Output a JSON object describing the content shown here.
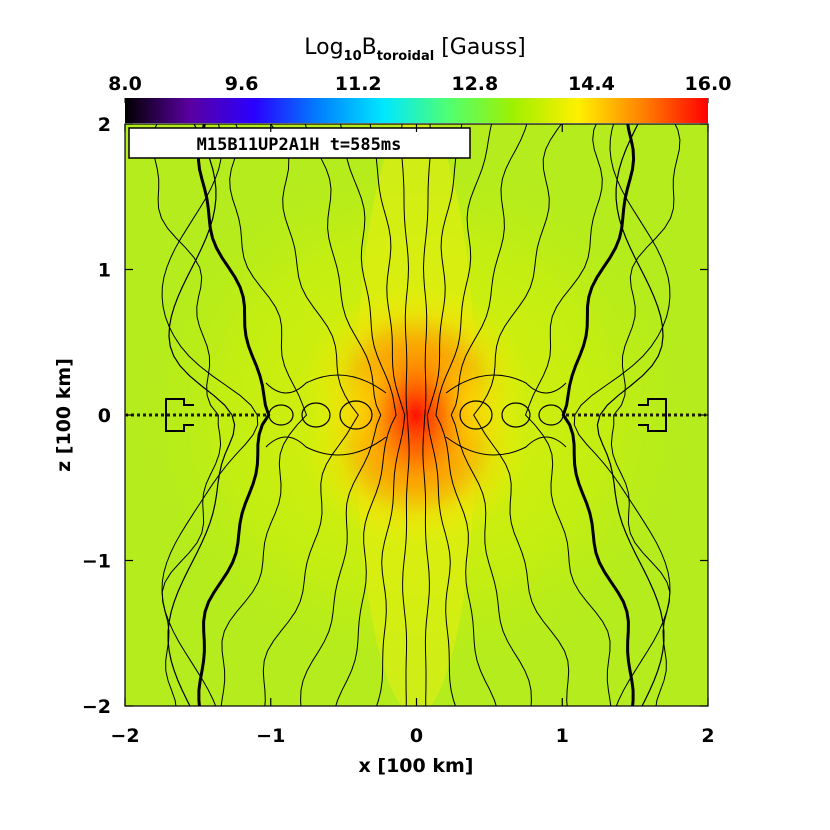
{
  "chart_data": {
    "type": "heatmap",
    "title": "",
    "colorbar": {
      "label_main": "Log",
      "label_sub10": "10",
      "label_B": "B",
      "label_sub": "toroidal",
      "label_unit": " [Gauss]",
      "range": [
        8.0,
        16.0
      ],
      "tick_values": [
        8.0,
        9.6,
        11.2,
        12.8,
        14.4,
        16.0
      ],
      "tick_labels": [
        "8.0",
        "9.6",
        "11.2",
        "12.8",
        "14.4",
        "16.0"
      ],
      "palette": [
        "#000000",
        "#5a00a0",
        "#2a00ff",
        "#0080ff",
        "#00e8ff",
        "#50ff70",
        "#a0f000",
        "#fff000",
        "#ff8000",
        "#ff0000"
      ]
    },
    "run_label": "M15B11UP2A1H t=585ms",
    "xlabel": "x [100 km]",
    "ylabel": "z [100 km]",
    "xlim": [
      -2,
      2
    ],
    "ylim": [
      -2,
      2
    ],
    "x_ticks": [
      -2,
      -1,
      0,
      1,
      2
    ],
    "x_tick_labels": [
      "−2",
      "−1",
      "0",
      "1",
      "2"
    ],
    "y_ticks": [
      -2,
      -1,
      0,
      1,
      2
    ],
    "y_tick_labels": [
      "−2",
      "−1",
      "0",
      "1",
      "2"
    ],
    "field": {
      "background_log10B": 13.7,
      "peak_log10B": 16.0,
      "peak_location": [
        0,
        0
      ]
    },
    "contours": "black field lines, symmetric about x=0, converging toward the origin"
  }
}
